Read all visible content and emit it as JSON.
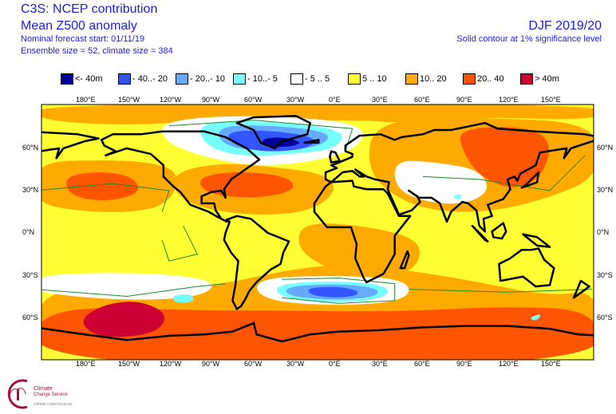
{
  "header": {
    "title": "C3S: NCEP contribution",
    "subtitle": "Mean Z500 anomaly",
    "forecast_start": "Nominal forecast start: 01/11/19",
    "ensemble": "Ensemble size = 52, climate size = 384",
    "season": "DJF 2019/20",
    "significance": "Solid contour at 1% significance level"
  },
  "legend": [
    {
      "label": "<- 40m",
      "color": "#000099"
    },
    {
      "label": "- 40..- 20",
      "color": "#3355ff"
    },
    {
      "label": "- 20..- 10",
      "color": "#66aaff"
    },
    {
      "label": "- 10..- 5",
      "color": "#77ffff"
    },
    {
      "label": "- 5 .. 5",
      "color": "#ffffff"
    },
    {
      "label": "5 .. 10",
      "color": "#ffff33"
    },
    {
      "label": "10.. 20",
      "color": "#ffaa00"
    },
    {
      "label": "20.. 40",
      "color": "#ff5500"
    },
    {
      "label": ">  40m",
      "color": "#cc0033"
    }
  ],
  "lon_labels": [
    "180°E",
    "150°W",
    "120°W",
    "90°W",
    "60°W",
    "30°W",
    "0°E",
    "30°E",
    "60°E",
    "90°E",
    "120°E",
    "150°E"
  ],
  "lat_labels": [
    "60°N",
    "30°N",
    "0°N",
    "30°S",
    "60°S"
  ],
  "logo": {
    "line1": "Climate",
    "line2": "Change Service",
    "url": "climate.copernicus.eu"
  }
}
